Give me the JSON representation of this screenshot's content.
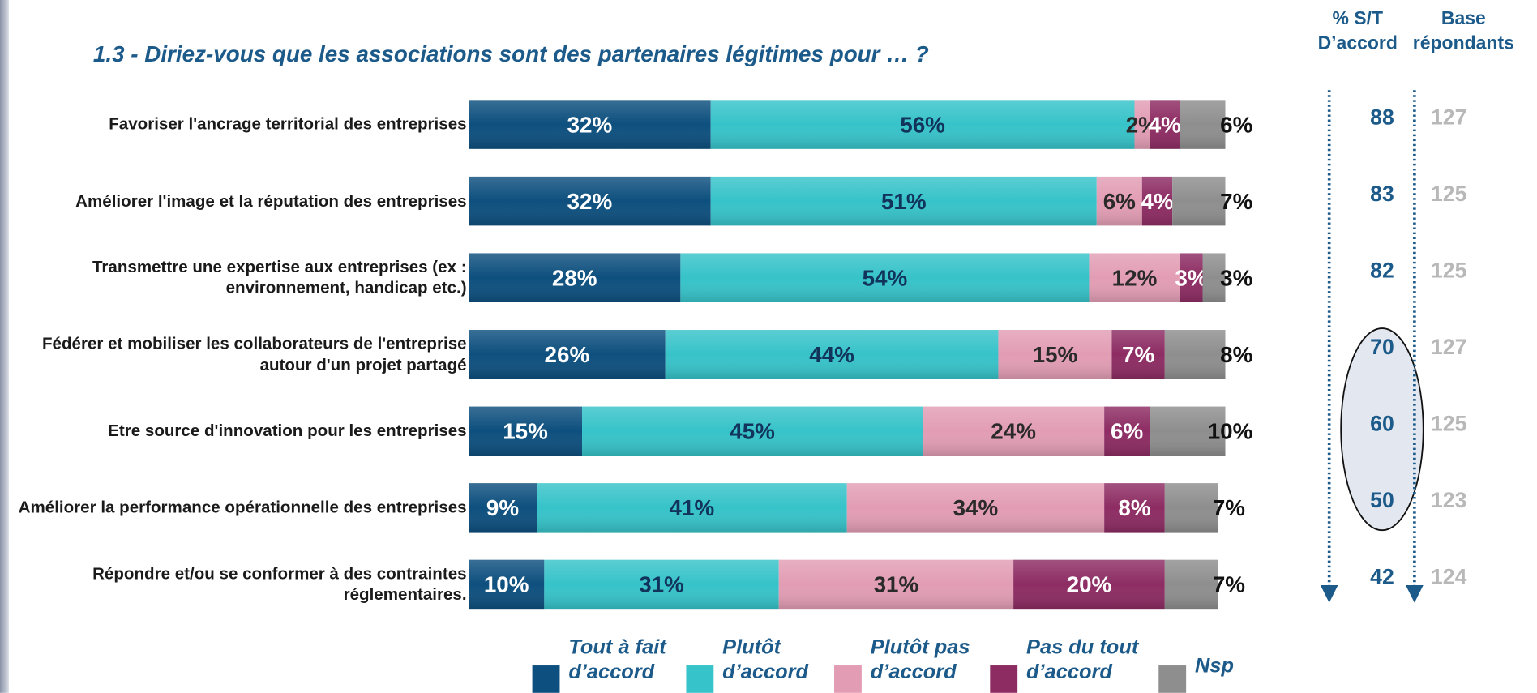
{
  "chart_data": {
    "type": "bar",
    "orientation": "horizontal",
    "stacked": true,
    "title": "1.3 - Diriez-vous que les associations sont des partenaires légitimes pour … ?",
    "categories": [
      "Favoriser l'ancrage territorial des entreprises",
      "Améliorer l'image et la réputation des entreprises",
      "Transmettre une expertise aux entreprises (ex : environnement, handicap etc.)",
      "Fédérer et mobiliser les collaborateurs de l'entreprise autour d'un projet partagé",
      "Etre source d'innovation pour les entreprises",
      "Améliorer la  performance opérationnelle des entreprises",
      "Répondre et/ou se conformer à des  contraintes réglementaires."
    ],
    "series": [
      {
        "name": "Tout à fait d’accord",
        "color": "#0d4f7e",
        "values": [
          32,
          32,
          28,
          26,
          15,
          9,
          10
        ],
        "value_labels": [
          "32%",
          "32%",
          "28%",
          "26%",
          "15%",
          "9%",
          "10%"
        ]
      },
      {
        "name": "Plutôt d’accord",
        "color": "#36c3c9",
        "values": [
          56,
          51,
          54,
          44,
          45,
          41,
          31
        ],
        "value_labels": [
          "56%",
          "51%",
          "54%",
          "44%",
          "45%",
          "41%",
          "31%"
        ]
      },
      {
        "name": "Plutôt pas d’accord",
        "color": "#e29db4",
        "values": [
          2,
          6,
          12,
          15,
          24,
          34,
          31
        ],
        "value_labels": [
          "2%",
          "6%",
          "12%",
          "15%",
          "24%",
          "34%",
          "31%"
        ]
      },
      {
        "name": "Pas du tout d’accord",
        "color": "#8d2c63",
        "values": [
          4,
          4,
          3,
          7,
          6,
          8,
          20
        ],
        "value_labels": [
          "4%",
          "4%",
          "3%",
          "7%",
          "6%",
          "8%",
          "20%"
        ]
      },
      {
        "name": "Nsp",
        "color": "#8e8e8e",
        "values": [
          6,
          7,
          3,
          8,
          10,
          7,
          7
        ],
        "value_labels": [
          "6%",
          "7%",
          "3%",
          "8%",
          "10%",
          "7%",
          "7%"
        ]
      }
    ],
    "columns": [
      {
        "header": [
          "% S/T",
          "D’accord"
        ],
        "values": [
          88,
          83,
          82,
          70,
          60,
          50,
          42
        ]
      },
      {
        "header": [
          "Base",
          "répondants"
        ],
        "values": [
          127,
          125,
          125,
          127,
          125,
          123,
          124
        ]
      }
    ]
  }
}
